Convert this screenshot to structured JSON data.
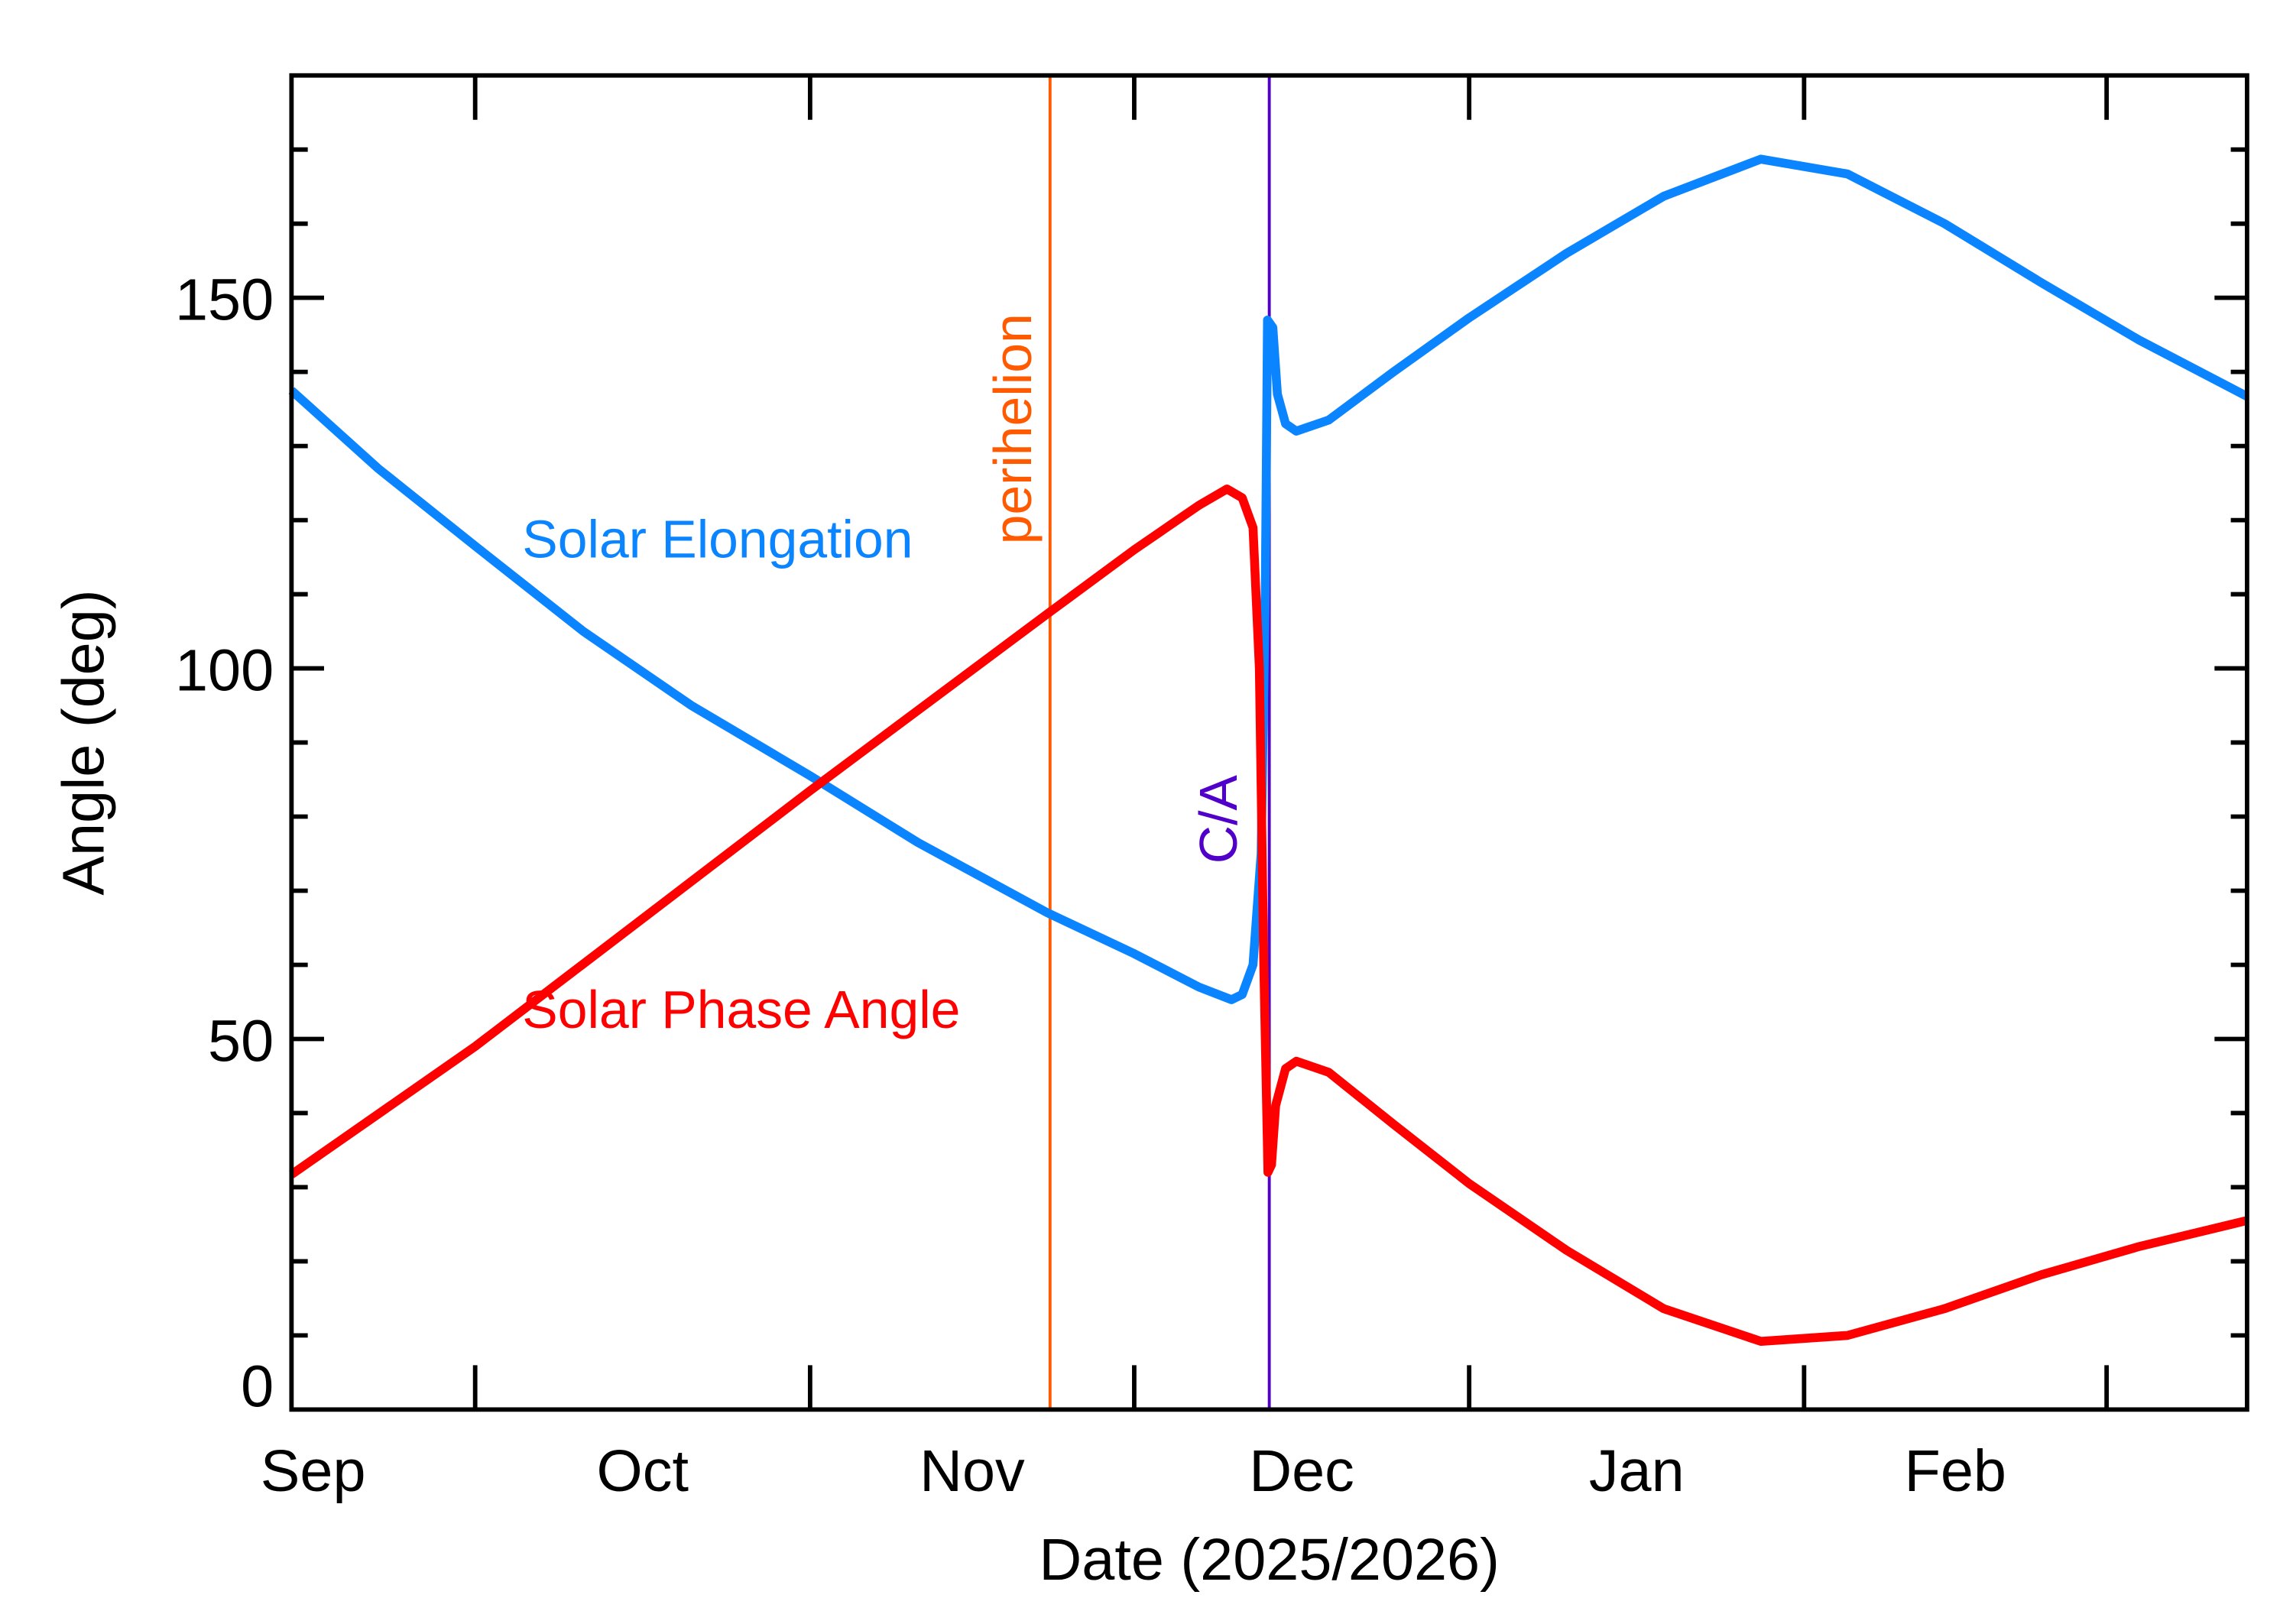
{
  "chart_data": {
    "type": "line",
    "title": "",
    "xlabel": "Date (2025/2026)",
    "ylabel": "Angle (deg)",
    "xlim": [
      "2025-09-14",
      "2026-03-14"
    ],
    "ylim": [
      0,
      180
    ],
    "grid": false,
    "x_tick_labels": [
      {
        "label": "Sep",
        "month": "2025-09"
      },
      {
        "label": "Oct",
        "month": "2025-10"
      },
      {
        "label": "Nov",
        "month": "2025-11"
      },
      {
        "label": "Dec",
        "month": "2025-12"
      },
      {
        "label": "Jan",
        "month": "2026-01"
      },
      {
        "label": "Feb",
        "month": "2026-02"
      }
    ],
    "y_tick_labels": [
      "0",
      "50",
      "100",
      "150"
    ],
    "y_ticks": [
      0,
      50,
      100,
      150
    ],
    "series": [
      {
        "name": "Solar Elongation",
        "color": "#0a84ff",
        "points": [
          [
            "2025-09-14T00:00",
            137.5
          ],
          [
            "2025-09-22T00:00",
            127
          ],
          [
            "2025-10-01T00:00",
            116.5
          ],
          [
            "2025-10-11T00:00",
            105
          ],
          [
            "2025-10-21T00:00",
            95
          ],
          [
            "2025-11-01T00:00",
            85.5
          ],
          [
            "2025-11-11T00:00",
            76.5
          ],
          [
            "2025-11-23T00:00",
            67
          ],
          [
            "2025-12-01T00:00",
            61.5
          ],
          [
            "2025-12-07T00:00",
            57
          ],
          [
            "2025-12-10T00:00",
            55.3
          ],
          [
            "2025-12-11T00:00",
            56
          ],
          [
            "2025-12-12T00:00",
            60
          ],
          [
            "2025-12-12T18:00",
            75
          ],
          [
            "2025-12-13T03:00",
            110
          ],
          [
            "2025-12-13T08:00",
            147
          ],
          [
            "2025-12-13T20:00",
            146
          ],
          [
            "2025-12-14T06:00",
            137
          ],
          [
            "2025-12-15T00:00",
            133
          ],
          [
            "2025-12-16T00:00",
            132
          ],
          [
            "2025-12-19T00:00",
            133.5
          ],
          [
            "2025-12-25T00:00",
            140
          ],
          [
            "2026-01-01T00:00",
            147.3
          ],
          [
            "2026-01-10T00:00",
            156
          ],
          [
            "2026-01-19T00:00",
            163.7
          ],
          [
            "2026-01-28T00:00",
            168.7
          ],
          [
            "2026-02-05T00:00",
            166.7
          ],
          [
            "2026-02-14T00:00",
            160
          ],
          [
            "2026-02-23T00:00",
            152
          ],
          [
            "2026-03-04T00:00",
            144.3
          ],
          [
            "2026-03-14T00:00",
            136.7
          ]
        ]
      },
      {
        "name": "Solar Phase Angle",
        "color": "#ff0000",
        "points": [
          [
            "2025-09-14T00:00",
            31.7
          ],
          [
            "2025-10-01T00:00",
            49
          ],
          [
            "2025-11-01T00:00",
            83.5
          ],
          [
            "2025-11-23T00:00",
            107.4
          ],
          [
            "2025-12-01T00:00",
            116
          ],
          [
            "2025-12-07T00:00",
            122
          ],
          [
            "2025-12-09T14:00",
            124.2
          ],
          [
            "2025-12-11T00:00",
            123
          ],
          [
            "2025-12-12T00:00",
            119
          ],
          [
            "2025-12-12T14:00",
            100
          ],
          [
            "2025-12-13T00:00",
            60
          ],
          [
            "2025-12-13T09:00",
            32
          ],
          [
            "2025-12-13T17:00",
            33
          ],
          [
            "2025-12-14T02:00",
            41
          ],
          [
            "2025-12-15T00:00",
            46
          ],
          [
            "2025-12-16T00:00",
            47
          ],
          [
            "2025-12-19T00:00",
            45.5
          ],
          [
            "2025-12-25T00:00",
            38.5
          ],
          [
            "2026-01-01T00:00",
            30.5
          ],
          [
            "2026-01-10T00:00",
            21.5
          ],
          [
            "2026-01-19T00:00",
            13.6
          ],
          [
            "2026-01-28T00:00",
            9.2
          ],
          [
            "2026-02-05T00:00",
            10
          ],
          [
            "2026-02-14T00:00",
            13.6
          ],
          [
            "2026-02-23T00:00",
            18.2
          ],
          [
            "2026-03-04T00:00",
            22
          ],
          [
            "2026-03-14T00:00",
            25.5
          ]
        ]
      }
    ],
    "annotations": [
      {
        "label": "perihelion",
        "date": "2025-11-23T05:00",
        "color": "#ff5a00"
      },
      {
        "label": "C/A",
        "date": "2025-12-13T12:00",
        "color": "#5000c8"
      }
    ],
    "series_labels": [
      {
        "label": "Solar Elongation",
        "color": "#0a84ff"
      },
      {
        "label": "Solar Phase Angle",
        "color": "#ff0000"
      }
    ]
  }
}
